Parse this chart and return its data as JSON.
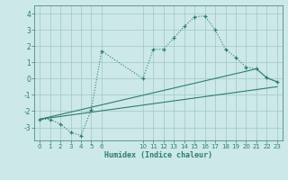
{
  "title": "",
  "xlabel": "Humidex (Indice chaleur)",
  "bg_color": "#cce8e8",
  "line_color": "#2e7d6e",
  "grid_color": "#a0c8c0",
  "xlim": [
    -0.5,
    23.5
  ],
  "ylim": [
    -3.8,
    4.5
  ],
  "yticks": [
    -3,
    -2,
    -1,
    0,
    1,
    2,
    3,
    4
  ],
  "xticks": [
    0,
    1,
    2,
    3,
    4,
    5,
    6,
    10,
    11,
    12,
    13,
    14,
    15,
    16,
    17,
    18,
    19,
    20,
    21,
    22,
    23
  ],
  "curve1_x": [
    0,
    1,
    2,
    3,
    4,
    5,
    6,
    10,
    11,
    12,
    13,
    14,
    15,
    16,
    17,
    18,
    19,
    20,
    21,
    22,
    23
  ],
  "curve1_y": [
    -2.5,
    -2.5,
    -2.8,
    -3.3,
    -3.5,
    -1.9,
    1.7,
    0.0,
    1.8,
    1.8,
    2.5,
    3.2,
    3.8,
    3.85,
    3.0,
    1.8,
    1.3,
    0.7,
    0.6,
    0.05,
    -0.2
  ],
  "curve2_x": [
    0,
    21,
    22,
    23
  ],
  "curve2_y": [
    -2.5,
    0.6,
    0.05,
    -0.2
  ],
  "curve3_x": [
    0,
    23
  ],
  "curve3_y": [
    -2.5,
    -0.5
  ]
}
